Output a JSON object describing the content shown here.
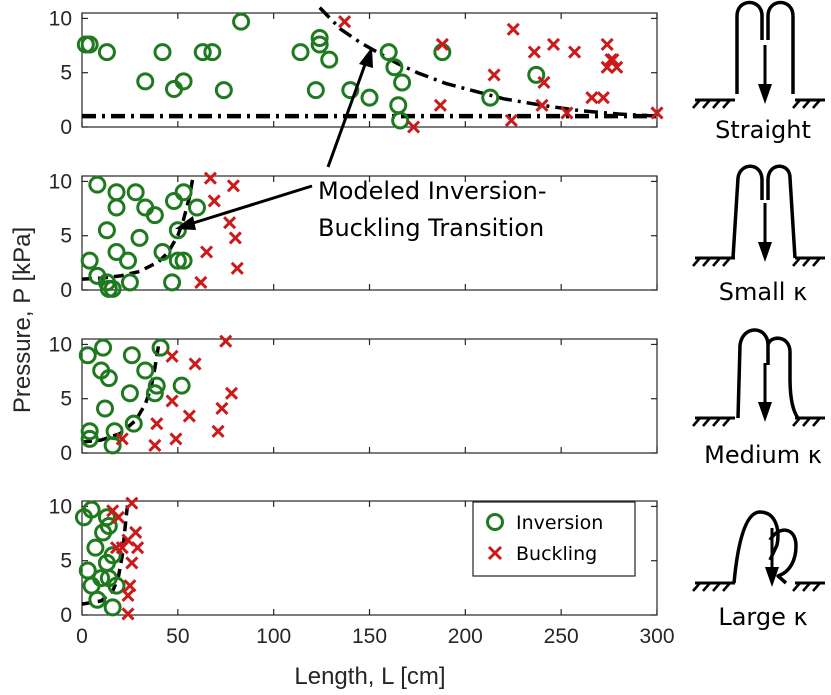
{
  "chart_data": {
    "type": "scatter",
    "xlabel": "Length, L [cm]",
    "ylabel": "Pressure, P [kPa]",
    "xlim": [
      0,
      300
    ],
    "ylim": [
      0,
      10.5
    ],
    "xticks": [
      0,
      50,
      100,
      150,
      200,
      250,
      300
    ],
    "yticks": [
      0,
      5,
      10
    ],
    "legend": {
      "position": "top-right of bottom panel",
      "entries": [
        "Inversion",
        "Buckling"
      ]
    },
    "annotation": {
      "lines": [
        "Modeled Inversion-",
        "Buckling Transition"
      ]
    },
    "colors": {
      "inversion": "#1f7a1f",
      "buckling": "#cc1a1a",
      "model": "#000000"
    },
    "panels": [
      {
        "name": "Straight",
        "label": "Straight",
        "inversion": [
          [
            2,
            7.6
          ],
          [
            4,
            7.6
          ],
          [
            13,
            6.9
          ],
          [
            33,
            4.2
          ],
          [
            42,
            6.9
          ],
          [
            48,
            3.5
          ],
          [
            53,
            4.2
          ],
          [
            63,
            6.9
          ],
          [
            68,
            6.9
          ],
          [
            74,
            3.4
          ],
          [
            83,
            9.7
          ],
          [
            114,
            6.9
          ],
          [
            122,
            3.4
          ],
          [
            124,
            8.2
          ],
          [
            124,
            7.6
          ],
          [
            129,
            6.2
          ],
          [
            140,
            3.4
          ],
          [
            150,
            2.7
          ],
          [
            160,
            6.9
          ],
          [
            163,
            5.5
          ],
          [
            165,
            2.0
          ],
          [
            166,
            0.6
          ],
          [
            167,
            4.1
          ],
          [
            188,
            6.9
          ],
          [
            213,
            2.7
          ],
          [
            237,
            4.8
          ]
        ],
        "buckling": [
          [
            137,
            9.7
          ],
          [
            173,
            0.0
          ],
          [
            187,
            2.0
          ],
          [
            188,
            7.6
          ],
          [
            215,
            4.8
          ],
          [
            224,
            0.6
          ],
          [
            225,
            9.0
          ],
          [
            236,
            6.9
          ],
          [
            240,
            2.0
          ],
          [
            241,
            4.1
          ],
          [
            246,
            7.6
          ],
          [
            253,
            1.3
          ],
          [
            257,
            6.9
          ],
          [
            266,
            2.7
          ],
          [
            272,
            2.7
          ],
          [
            274,
            7.6
          ],
          [
            274,
            5.5
          ],
          [
            276,
            6.2
          ],
          [
            277,
            6.2
          ],
          [
            279,
            5.5
          ],
          [
            300,
            1.3
          ]
        ],
        "model_curve": {
          "style": "dash-dot",
          "x": [
            124,
            135,
            145,
            155,
            165,
            175,
            190,
            205,
            220,
            240,
            260,
            280,
            300
          ],
          "y": [
            11.0,
            9.0,
            7.8,
            6.8,
            5.8,
            5.0,
            4.0,
            3.3,
            2.6,
            2.0,
            1.5,
            1.2,
            1.0
          ]
        },
        "model_line": {
          "style": "dash-dot",
          "x": [
            0,
            300
          ],
          "y": [
            1.0,
            1.0
          ]
        }
      },
      {
        "name": "Small kappa",
        "label": "Small κ",
        "inversion": [
          [
            8,
            9.7
          ],
          [
            18,
            9.0
          ],
          [
            28,
            9.0
          ],
          [
            53,
            9.0
          ],
          [
            48,
            8.2
          ],
          [
            33,
            7.6
          ],
          [
            18,
            7.6
          ],
          [
            38,
            6.9
          ],
          [
            60,
            7.6
          ],
          [
            13,
            5.5
          ],
          [
            30,
            4.8
          ],
          [
            50,
            5.5
          ],
          [
            18,
            3.5
          ],
          [
            42,
            3.5
          ],
          [
            4,
            2.7
          ],
          [
            24,
            2.7
          ],
          [
            50,
            2.7
          ],
          [
            53,
            2.7
          ],
          [
            8,
            1.3
          ],
          [
            13,
            0.7
          ],
          [
            25,
            0.7
          ],
          [
            14,
            0.1
          ],
          [
            16,
            0.1
          ],
          [
            47,
            0.7
          ]
        ],
        "buckling": [
          [
            67,
            10.3
          ],
          [
            79,
            9.6
          ],
          [
            69,
            8.2
          ],
          [
            77,
            6.2
          ],
          [
            80,
            4.8
          ],
          [
            65,
            3.5
          ],
          [
            81,
            2.0
          ],
          [
            62,
            0.7
          ]
        ],
        "model_curve": {
          "style": "dashed",
          "x": [
            0,
            10,
            20,
            30,
            40,
            45,
            50,
            53,
            56,
            58
          ],
          "y": [
            1.0,
            1.1,
            1.3,
            1.7,
            2.6,
            3.5,
            5.0,
            6.5,
            8.5,
            10.5
          ]
        }
      },
      {
        "name": "Medium kappa",
        "label": "Medium κ",
        "inversion": [
          [
            41,
            9.7
          ],
          [
            11,
            9.7
          ],
          [
            3,
            9.0
          ],
          [
            26,
            9.0
          ],
          [
            10,
            7.6
          ],
          [
            14,
            6.9
          ],
          [
            33,
            7.6
          ],
          [
            25,
            5.5
          ],
          [
            39,
            6.2
          ],
          [
            52,
            6.2
          ],
          [
            38,
            5.5
          ],
          [
            12,
            4.1
          ],
          [
            27,
            2.7
          ],
          [
            4,
            2.0
          ],
          [
            4,
            1.3
          ],
          [
            17,
            2.0
          ],
          [
            16,
            0.7
          ]
        ],
        "buckling": [
          [
            75,
            10.3
          ],
          [
            47,
            8.9
          ],
          [
            59,
            8.2
          ],
          [
            78,
            5.5
          ],
          [
            47,
            4.8
          ],
          [
            73,
            4.1
          ],
          [
            56,
            3.4
          ],
          [
            71,
            2.0
          ],
          [
            39,
            2.7
          ],
          [
            38,
            0.7
          ],
          [
            49,
            1.3
          ],
          [
            21,
            1.3
          ]
        ],
        "model_curve": {
          "style": "dashed",
          "x": [
            0,
            10,
            20,
            28,
            33,
            36,
            38,
            40
          ],
          "y": [
            1.0,
            1.2,
            1.8,
            3.0,
            4.5,
            6.0,
            7.8,
            10.0
          ]
        }
      },
      {
        "name": "Large kappa",
        "label": "Large κ",
        "inversion": [
          [
            5,
            9.7
          ],
          [
            1,
            9.0
          ],
          [
            13,
            9.0
          ],
          [
            14,
            8.2
          ],
          [
            11,
            7.6
          ],
          [
            7,
            6.2
          ],
          [
            16,
            5.5
          ],
          [
            13,
            4.8
          ],
          [
            3,
            4.1
          ],
          [
            10,
            3.4
          ],
          [
            14,
            3.4
          ],
          [
            5,
            2.7
          ],
          [
            18,
            2.7
          ],
          [
            8,
            1.4
          ],
          [
            16,
            0.7
          ]
        ],
        "buckling": [
          [
            26,
            10.3
          ],
          [
            16,
            9.6
          ],
          [
            19,
            9.0
          ],
          [
            28,
            7.6
          ],
          [
            24,
            6.9
          ],
          [
            29,
            6.2
          ],
          [
            26,
            4.8
          ],
          [
            25,
            2.7
          ],
          [
            24,
            1.8
          ],
          [
            24,
            0.1
          ],
          [
            18,
            6.2
          ],
          [
            21,
            6.2
          ]
        ],
        "model_curve": {
          "style": "dashed",
          "x": [
            0,
            10,
            16,
            19,
            21,
            22,
            23,
            24
          ],
          "y": [
            1.0,
            1.3,
            2.2,
            3.5,
            5.5,
            7.2,
            9.0,
            10.5
          ]
        }
      }
    ]
  }
}
